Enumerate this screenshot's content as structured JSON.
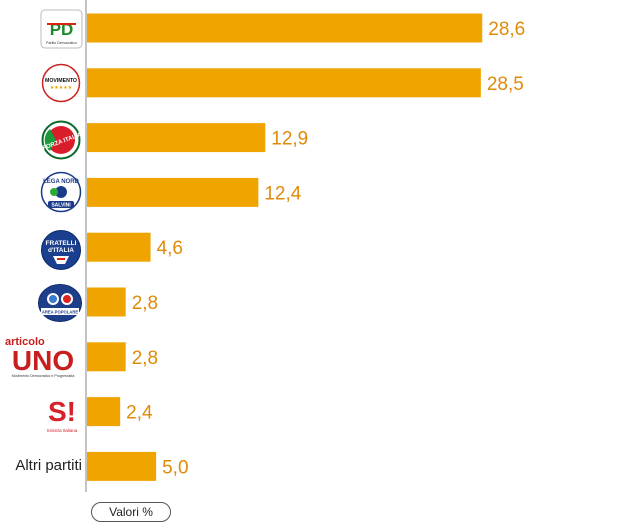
{
  "chart_data": {
    "type": "bar",
    "orientation": "horizontal",
    "categories": [
      "PD",
      "MoVimento 5 Stelle",
      "Forza Italia",
      "Lega Nord",
      "Fratelli d'Italia",
      "Area Popolare",
      "Articolo Uno",
      "Sinistra Italiana",
      "Altri partiti"
    ],
    "values": [
      28.6,
      28.5,
      12.9,
      12.4,
      4.6,
      2.8,
      2.8,
      2.4,
      5.0
    ],
    "value_labels": [
      "28,6",
      "28,5",
      "12,9",
      "12,4",
      "4,6",
      "2,8",
      "2,8",
      "2,4",
      "5,0"
    ],
    "xlim": [
      0,
      30
    ],
    "grid": false,
    "legend": "bottom-left",
    "legend_label": "Valori %",
    "bar_color": "#f0a400",
    "label_color": "#e08a0a"
  },
  "logos": {
    "pd": {
      "mark": "PD",
      "caption": "Partito Democratico"
    },
    "m5s": {
      "mark": "MOVIMENTO",
      "stars": "★★★★★"
    },
    "fi": {
      "mark": "FORZA ITALIA"
    },
    "lega": {
      "top": "LEGA NORD",
      "bottom": "SALVINI"
    },
    "fdi": {
      "line1": "FRATELLI",
      "line2": "d'ITALIA"
    },
    "ap": {
      "caption": "AREA POPOLARE"
    },
    "art1": {
      "top": "articolo",
      "mark": "UNO",
      "caption": "Movimento Democratico e Progressista"
    },
    "si": {
      "mark": "S!",
      "caption": "Sinistra Italiana"
    }
  }
}
